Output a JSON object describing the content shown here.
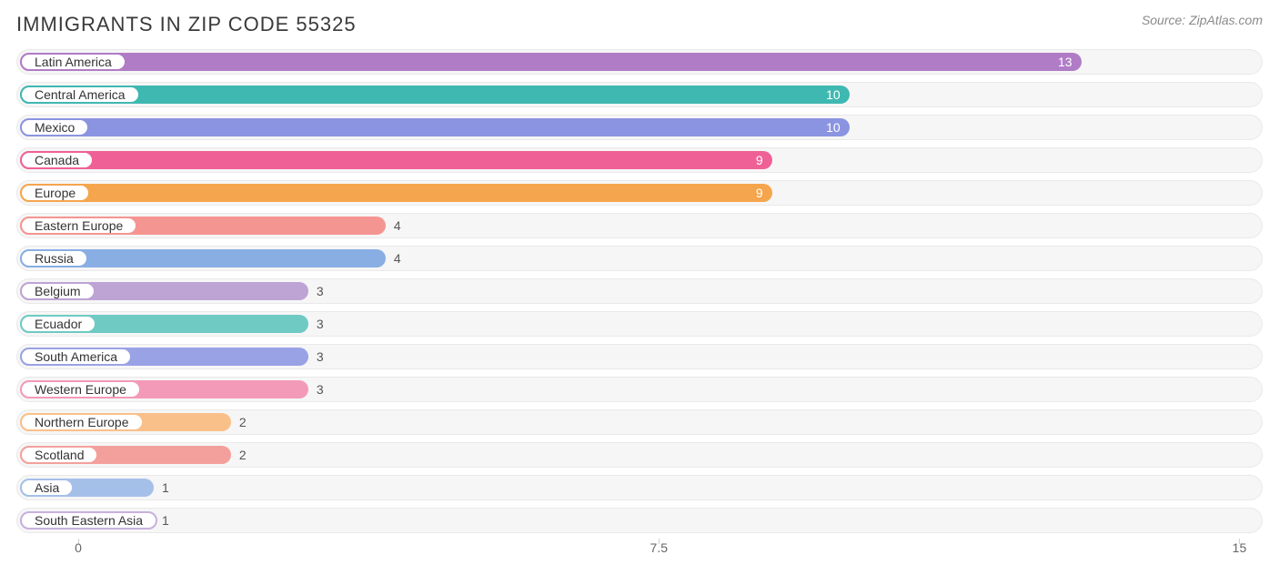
{
  "header": {
    "title": "IMMIGRANTS IN ZIP CODE 55325",
    "source": "Source: ZipAtlas.com"
  },
  "chart": {
    "type": "bar",
    "orientation": "horizontal",
    "xmin": -0.8,
    "xmax": 15.3,
    "xticks": [
      0,
      7.5,
      15
    ],
    "xtick_labels": [
      "0",
      "7.5",
      "15"
    ],
    "track_bg": "#f6f6f6",
    "track_border": "#e9e9e9",
    "pill_bg": "#ffffff",
    "label_fontsize": 14,
    "value_inside_threshold": 8,
    "bars": [
      {
        "label": "Latin America",
        "value": 13,
        "color": "#b07cc6"
      },
      {
        "label": "Central America",
        "value": 10,
        "color": "#3fb8b2"
      },
      {
        "label": "Mexico",
        "value": 10,
        "color": "#8b94e0"
      },
      {
        "label": "Canada",
        "value": 9,
        "color": "#ef6196"
      },
      {
        "label": "Europe",
        "value": 9,
        "color": "#f5a54d"
      },
      {
        "label": "Eastern Europe",
        "value": 4,
        "color": "#f59591"
      },
      {
        "label": "Russia",
        "value": 4,
        "color": "#89aee3"
      },
      {
        "label": "Belgium",
        "value": 3,
        "color": "#bda4d4"
      },
      {
        "label": "Ecuador",
        "value": 3,
        "color": "#6fcac4"
      },
      {
        "label": "South America",
        "value": 3,
        "color": "#9aa2e6"
      },
      {
        "label": "Western Europe",
        "value": 3,
        "color": "#f49ab9"
      },
      {
        "label": "Northern Europe",
        "value": 2,
        "color": "#f9c089"
      },
      {
        "label": "Scotland",
        "value": 2,
        "color": "#f3a09c"
      },
      {
        "label": "Asia",
        "value": 1,
        "color": "#a5c0e8"
      },
      {
        "label": "South Eastern Asia",
        "value": 1,
        "color": "#c7b1dd"
      }
    ]
  }
}
